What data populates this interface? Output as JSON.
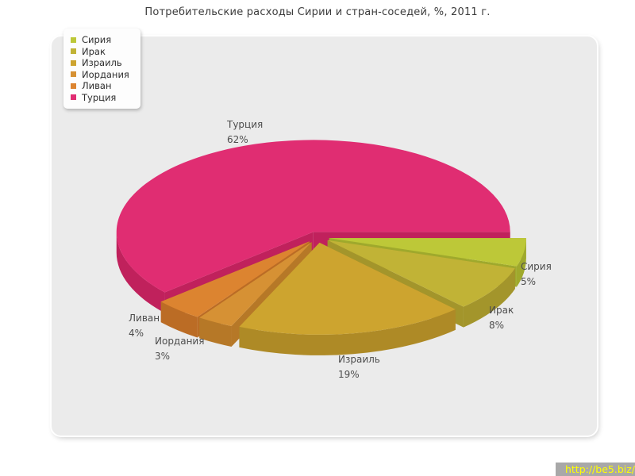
{
  "title": "Потребительские расходы Сирии и стран-соседей, %, 2011 г.",
  "footer_link": "http://be5.biz/",
  "colors": {
    "page_bg": "#ffffff",
    "panel_bg": "#ebebeb",
    "legend_bg": "#fdfdfd",
    "title_text": "#3c3c3c",
    "label_text": "#4d4d4d",
    "footer_bg": "#a8a8a8",
    "footer_text": "#ffff00"
  },
  "chart_data": {
    "type": "pie",
    "title": "Потребительские расходы Сирии и стран-соседей, %, 2011 г.",
    "unit": "%",
    "effect_3d": true,
    "exploded": true,
    "legend_position": "top-left",
    "label_format": "name + percent",
    "slices": [
      {
        "label": "Сирия",
        "value": 5,
        "pct_label": "5%",
        "color": "#bdc838",
        "side_color": "#9fa92c"
      },
      {
        "label": "Ирак",
        "value": 8,
        "pct_label": "8%",
        "color": "#c1b336",
        "side_color": "#a3952b"
      },
      {
        "label": "Израиль",
        "value": 19,
        "pct_label": "19%",
        "color": "#cda42f",
        "side_color": "#ae8a26"
      },
      {
        "label": "Иордания",
        "value": 3,
        "pct_label": "3%",
        "color": "#d69134",
        "side_color": "#b67827"
      },
      {
        "label": "Ливан",
        "value": 4,
        "pct_label": "4%",
        "color": "#dc8430",
        "side_color": "#bb6c25"
      },
      {
        "label": "Турция",
        "value": 62,
        "pct_label": "62%",
        "color": "#e02d72",
        "side_color": "#c0215c"
      }
    ]
  }
}
